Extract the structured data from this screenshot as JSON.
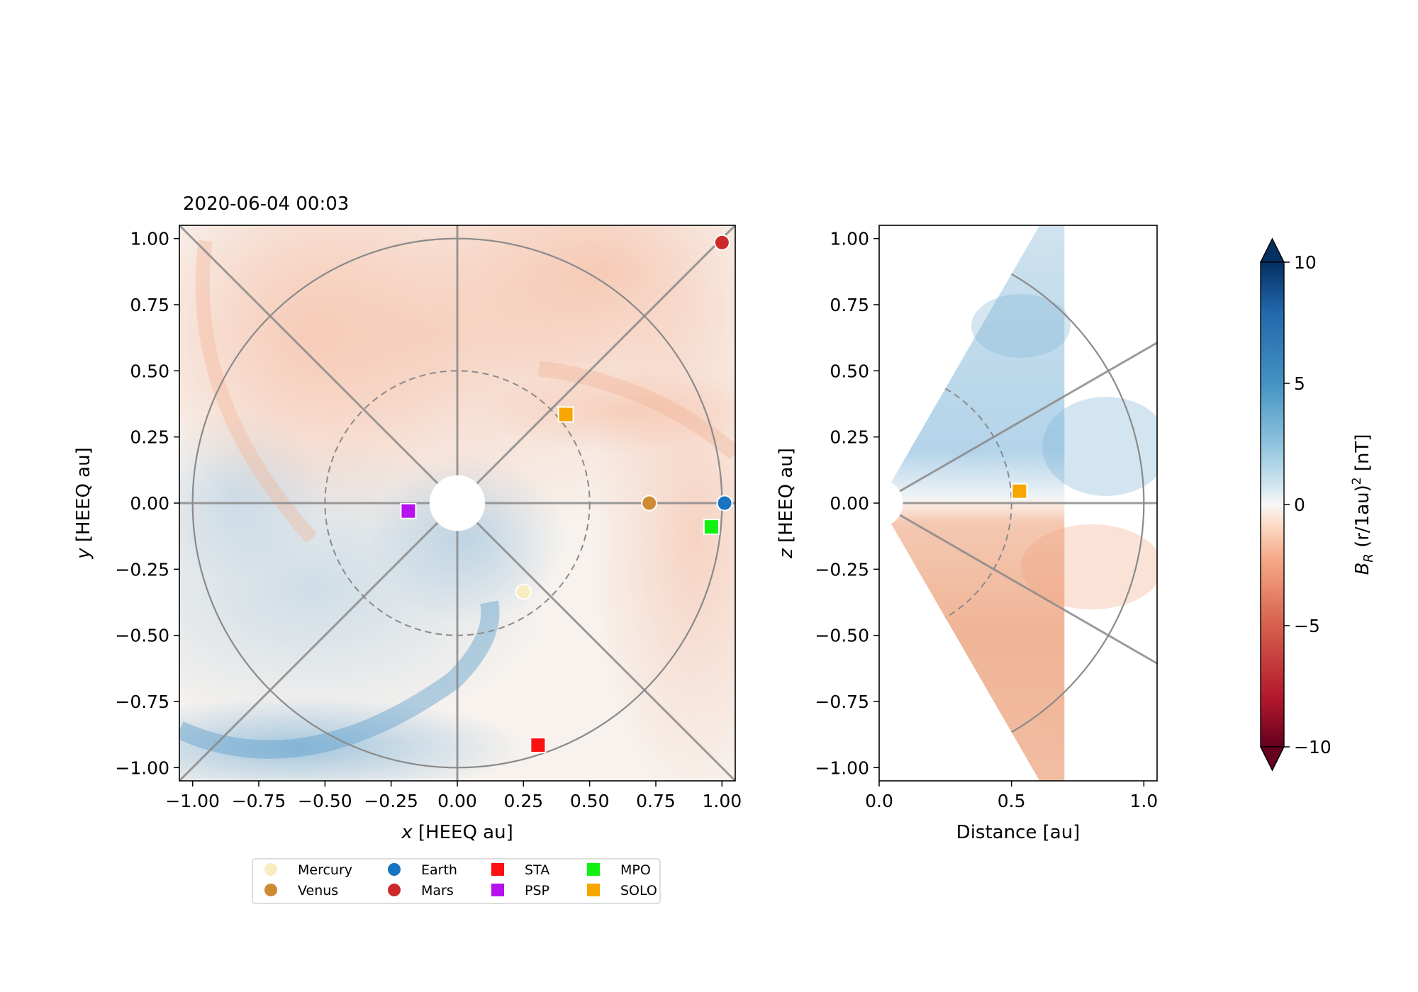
{
  "timestamp": "2020-06-04 00:03",
  "chart_data": [
    {
      "type": "scatter",
      "panel": "ecliptic",
      "title": "2020-06-04 00:03",
      "xlabel_var": "x",
      "xlabel_rest": " [HEEQ au]",
      "ylabel_var": "y",
      "ylabel_rest": " [HEEQ au]",
      "xlim": [
        -1.05,
        1.05
      ],
      "ylim": [
        -1.05,
        1.05
      ],
      "xticks": [
        -1.0,
        -0.75,
        -0.5,
        -0.25,
        0.0,
        0.25,
        0.5,
        0.75,
        1.0
      ],
      "yticks": [
        -1.0,
        -0.75,
        -0.5,
        -0.25,
        0.0,
        0.25,
        0.5,
        0.75,
        1.0
      ],
      "xtick_labels": [
        "−1.00",
        "−0.75",
        "−0.50",
        "−0.25",
        "0.00",
        "0.25",
        "0.50",
        "0.75",
        "1.00"
      ],
      "ytick_labels": [
        "−1.00",
        "−0.75",
        "−0.50",
        "−0.25",
        "0.00",
        "0.25",
        "0.50",
        "0.75",
        "1.00"
      ],
      "rings_au": [
        0.5,
        1.0
      ],
      "spoke_angles_deg": [
        0,
        45,
        90,
        135,
        180,
        225,
        270,
        315
      ],
      "points": [
        {
          "name": "Mercury",
          "x": 0.25,
          "y": -0.335,
          "marker": "circle"
        },
        {
          "name": "Venus",
          "x": 0.725,
          "y": 0.0,
          "marker": "circle"
        },
        {
          "name": "Earth",
          "x": 1.01,
          "y": 0.0,
          "marker": "circle"
        },
        {
          "name": "Mars",
          "x": 1.0,
          "y": 0.985,
          "marker": "circle"
        },
        {
          "name": "STA",
          "x": 0.305,
          "y": -0.915,
          "marker": "square"
        },
        {
          "name": "PSP",
          "x": -0.185,
          "y": -0.03,
          "marker": "square"
        },
        {
          "name": "MPO",
          "x": 0.96,
          "y": -0.09,
          "marker": "square"
        },
        {
          "name": "SOLO",
          "x": 0.41,
          "y": 0.335,
          "marker": "square"
        }
      ]
    },
    {
      "type": "scatter",
      "panel": "meridional",
      "xlabel": "Distance [au]",
      "ylabel_var": "z",
      "ylabel_rest": " [HEEQ au]",
      "xlim": [
        0.0,
        1.05
      ],
      "ylim": [
        -1.05,
        1.05
      ],
      "xticks": [
        0.0,
        0.5,
        1.0
      ],
      "yticks": [
        -1.0,
        -0.75,
        -0.5,
        -0.25,
        0.0,
        0.25,
        0.5,
        0.75,
        1.0
      ],
      "xtick_labels": [
        "0.0",
        "0.5",
        "1.0"
      ],
      "ytick_labels": [
        "−1.00",
        "−0.75",
        "−0.50",
        "−0.25",
        "0.00",
        "0.25",
        "0.50",
        "0.75",
        "1.00"
      ],
      "wedge_halfangle_deg": 60,
      "spoke_angles_deg": [
        30,
        0,
        -30
      ],
      "rings_au": [
        0.5,
        1.0
      ],
      "points": [
        {
          "name": "SOLO",
          "x": 0.53,
          "y": 0.045,
          "marker": "square"
        }
      ]
    }
  ],
  "colorbar": {
    "label_main": "B",
    "label_sub": "R",
    "label_rest": " (r/1au)",
    "label_sup": "2",
    "label_unit": " [nT]",
    "range": [
      -10,
      10
    ],
    "ticks": [
      10,
      5,
      0,
      -5,
      -10
    ],
    "tick_labels": [
      "10",
      "5",
      "0",
      "−5",
      "−10"
    ],
    "extend": "both",
    "colormap": "RdBu_r"
  },
  "legend": [
    {
      "label": "Mercury",
      "marker": "circle"
    },
    {
      "label": "Venus",
      "marker": "circle"
    },
    {
      "label": "Earth",
      "marker": "circle"
    },
    {
      "label": "Mars",
      "marker": "circle"
    },
    {
      "label": "STA",
      "marker": "square"
    },
    {
      "label": "PSP",
      "marker": "square"
    },
    {
      "label": "MPO",
      "marker": "square"
    },
    {
      "label": "SOLO",
      "marker": "square"
    }
  ],
  "colors": {
    "Mercury": "#f8ecc0",
    "Venus": "#cf8b34",
    "Earth": "#1674c2",
    "Mars": "#cc2a2a",
    "STA": "#ff1010",
    "PSP": "#b612f0",
    "MPO": "#12f012",
    "SOLO": "#f7a600",
    "grid": "#8a8a8a",
    "positive": "#f6b79b",
    "negative": "#9cc6e0"
  }
}
